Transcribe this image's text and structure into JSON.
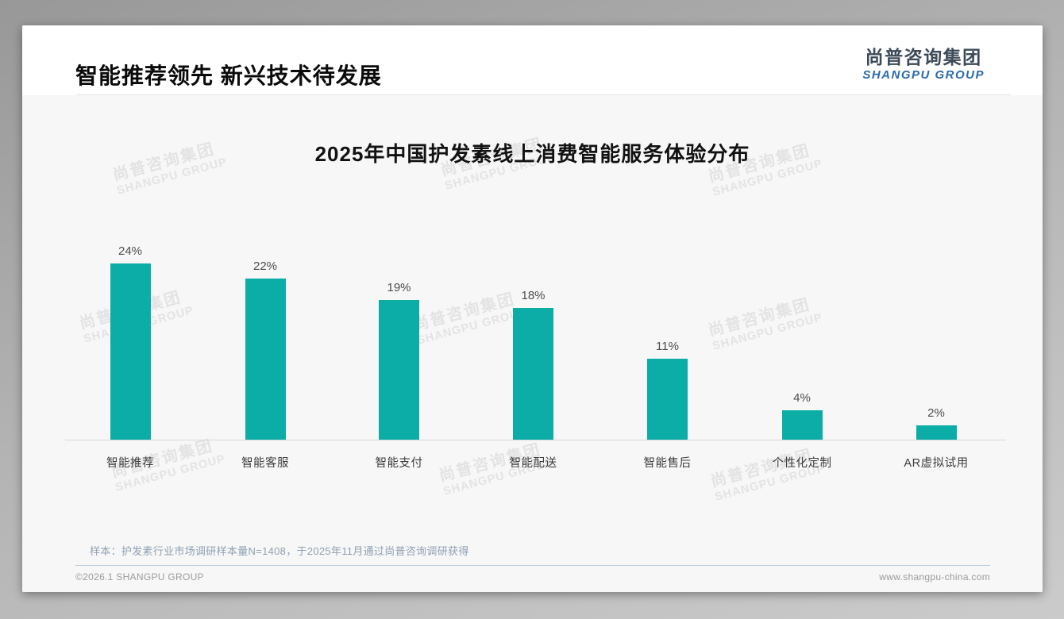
{
  "slide": {
    "title": "智能推荐领先 新兴技术待发展",
    "logo": {
      "name_zh": "尚普咨询集团",
      "name_en": "SHANGPU GROUP"
    },
    "watermark": {
      "line1": "尚普咨询集团",
      "line2": "SHANGPU GROUP"
    },
    "sample_note": "样本：护发素行业市场调研样本量N=1408，于2025年11月通过尚普咨询调研获得",
    "footer": {
      "copyright": "©2026.1 SHANGPU GROUP",
      "website": "www.shangpu-china.com"
    }
  },
  "chart_data": {
    "type": "bar",
    "title": "2025年中国护发素线上消费智能服务体验分布",
    "categories": [
      "智能推荐",
      "智能客服",
      "智能支付",
      "智能配送",
      "智能售后",
      "个性化定制",
      "AR虚拟试用"
    ],
    "values": [
      24,
      22,
      19,
      18,
      11,
      4,
      2
    ],
    "value_labels": [
      "24%",
      "22%",
      "19%",
      "18%",
      "11%",
      "4%",
      "2%"
    ],
    "unit": "%",
    "ylim": [
      0,
      26
    ],
    "bar_color": "#0BADA6",
    "grid": false,
    "legend": false,
    "xlabel": "",
    "ylabel": ""
  }
}
